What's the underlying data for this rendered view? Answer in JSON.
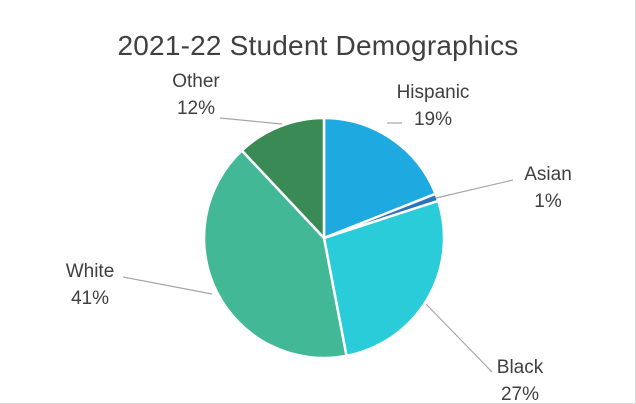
{
  "chart_data": {
    "type": "pie",
    "title": "2021-22 Student Demographics",
    "start_angle_deg": 0,
    "direction": "clockwise",
    "slices": [
      {
        "name": "Hispanic",
        "value": 19,
        "label": "19%",
        "color": "#1fa9e1"
      },
      {
        "name": "Asian",
        "value": 1,
        "label": "1%",
        "color": "#2a74b8"
      },
      {
        "name": "Black",
        "value": 27,
        "label": "27%",
        "color": "#29ccd8"
      },
      {
        "name": "White",
        "value": 41,
        "label": "41%",
        "color": "#43b896"
      },
      {
        "name": "Other",
        "value": 12,
        "label": "12%",
        "color": "#3a8a55"
      }
    ],
    "legend": "none"
  }
}
